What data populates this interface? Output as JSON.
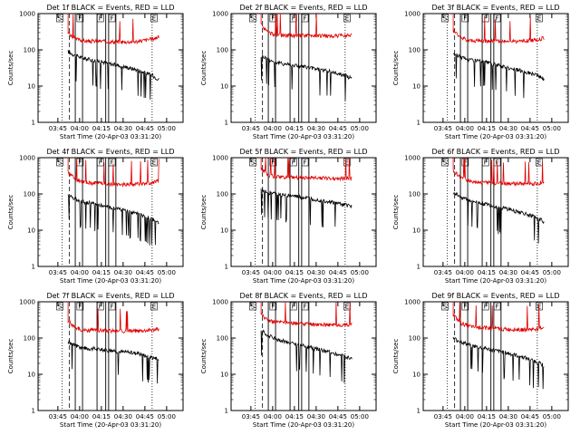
{
  "colors": {
    "events": "#000000",
    "lld": "#e00000",
    "background": "#ffffff"
  },
  "chart_data": [
    {
      "type": "line",
      "panel": "Det 1f",
      "title": "Det 1f BLACK = Events, RED = LLD",
      "xlabel": "Start Time (20-Apr-03 03:31:20)",
      "ylabel": "Counts/sec",
      "yscale": "log",
      "ylim": [
        1,
        1000
      ],
      "xlim": [
        "03:31:20",
        "05:11:20"
      ],
      "xtick_labels": [
        "03:45",
        "04:00",
        "04:15",
        "04:30",
        "04:45",
        "05:00"
      ],
      "ytick_labels": [
        "1",
        "10",
        "100",
        "1000"
      ],
      "flag_labels": [
        "S",
        "F",
        "F",
        "F",
        "E"
      ],
      "series": [
        {
          "name": "Events",
          "color": "#000000",
          "x": [
            "03:52",
            "03:57",
            "04:02",
            "04:06",
            "04:12",
            "04:20",
            "04:30",
            "04:40",
            "04:50",
            "04:55"
          ],
          "values": [
            90,
            70,
            60,
            55,
            50,
            42,
            35,
            28,
            20,
            15
          ]
        },
        {
          "name": "LLD",
          "color": "#e00000",
          "x": [
            "03:52",
            "03:57",
            "04:02",
            "04:06",
            "04:12",
            "04:20",
            "04:30",
            "04:40",
            "04:50",
            "04:55"
          ],
          "values": [
            300,
            200,
            180,
            170,
            175,
            170,
            165,
            170,
            200,
            230
          ]
        }
      ]
    },
    {
      "type": "line",
      "panel": "Det 2f",
      "title": "Det 2f BLACK = Events, RED = LLD",
      "xlabel": "Start Time (20-Apr-03 03:31:20)",
      "ylabel": "Counts/sec",
      "yscale": "log",
      "ylim": [
        1,
        1000
      ],
      "xlim": [
        "03:31:20",
        "05:11:20"
      ],
      "xtick_labels": [
        "03:45",
        "04:00",
        "04:15",
        "04:30",
        "04:45",
        "05:00"
      ],
      "ytick_labels": [
        "1",
        "10",
        "100",
        "1000"
      ],
      "flag_labels": [
        "S",
        "F",
        "F",
        "F",
        "E"
      ],
      "series": [
        {
          "name": "Events",
          "color": "#000000",
          "x": [
            "03:52",
            "03:57",
            "04:02",
            "04:06",
            "04:12",
            "04:20",
            "04:30",
            "04:40",
            "04:50",
            "04:55"
          ],
          "values": [
            70,
            55,
            45,
            42,
            40,
            35,
            30,
            25,
            20,
            16
          ]
        },
        {
          "name": "LLD",
          "color": "#e00000",
          "x": [
            "03:52",
            "03:57",
            "04:02",
            "04:06",
            "04:12",
            "04:20",
            "04:30",
            "04:40",
            "04:50",
            "04:55"
          ],
          "values": [
            500,
            300,
            260,
            250,
            250,
            250,
            250,
            240,
            250,
            270
          ]
        }
      ]
    },
    {
      "type": "line",
      "panel": "Det 3f",
      "title": "Det 3f BLACK = Events, RED = LLD",
      "xlabel": "Start Time (20-Apr-03 03:31:20)",
      "ylabel": "Counts/sec",
      "yscale": "log",
      "ylim": [
        1,
        1000
      ],
      "xlim": [
        "03:31:20",
        "05:11:20"
      ],
      "xtick_labels": [
        "03:45",
        "04:00",
        "04:15",
        "04:30",
        "04:45",
        "05:00"
      ],
      "ytick_labels": [
        "1",
        "10",
        "100",
        "1000"
      ],
      "flag_labels": [
        "S",
        "F",
        "F",
        "F",
        "E"
      ],
      "series": [
        {
          "name": "Events",
          "color": "#000000",
          "x": [
            "03:52",
            "03:57",
            "04:02",
            "04:06",
            "04:12",
            "04:20",
            "04:30",
            "04:40",
            "04:50",
            "04:55"
          ],
          "values": [
            80,
            65,
            55,
            52,
            48,
            40,
            32,
            26,
            20,
            15
          ]
        },
        {
          "name": "LLD",
          "color": "#e00000",
          "x": [
            "03:52",
            "03:57",
            "04:02",
            "04:06",
            "04:12",
            "04:20",
            "04:30",
            "04:40",
            "04:50",
            "04:55"
          ],
          "values": [
            350,
            220,
            190,
            180,
            180,
            175,
            170,
            175,
            190,
            220
          ]
        }
      ]
    },
    {
      "type": "line",
      "panel": "Det 4f",
      "title": "Det 4f BLACK = Events, RED = LLD",
      "xlabel": "Start Time (20-Apr-03 03:31:20)",
      "ylabel": "Counts/sec",
      "yscale": "log",
      "ylim": [
        1,
        1000
      ],
      "xlim": [
        "03:31:20",
        "05:11:20"
      ],
      "xtick_labels": [
        "03:45",
        "04:00",
        "04:15",
        "04:30",
        "04:45",
        "05:00"
      ],
      "ytick_labels": [
        "1",
        "10",
        "100",
        "1000"
      ],
      "flag_labels": [
        "S",
        "F",
        "F",
        "F",
        "E"
      ],
      "series": [
        {
          "name": "Events",
          "color": "#000000",
          "x": [
            "03:52",
            "03:57",
            "04:02",
            "04:06",
            "04:12",
            "04:20",
            "04:30",
            "04:40",
            "04:50",
            "04:55"
          ],
          "values": [
            95,
            75,
            62,
            57,
            52,
            44,
            36,
            28,
            20,
            15
          ]
        },
        {
          "name": "LLD",
          "color": "#e00000",
          "x": [
            "03:52",
            "03:57",
            "04:02",
            "04:06",
            "04:12",
            "04:20",
            "04:30",
            "04:40",
            "04:50",
            "04:55"
          ],
          "values": [
            400,
            250,
            220,
            200,
            200,
            190,
            185,
            190,
            200,
            240
          ]
        }
      ]
    },
    {
      "type": "line",
      "panel": "Det 5f",
      "title": "Det 5f BLACK = Events, RED = LLD",
      "xlabel": "Start Time (20-Apr-03 03:31:20)",
      "ylabel": "Counts/sec",
      "yscale": "log",
      "ylim": [
        1,
        1000
      ],
      "xlim": [
        "03:31:20",
        "05:11:20"
      ],
      "xtick_labels": [
        "03:45",
        "04:00",
        "04:15",
        "04:30",
        "04:45",
        "05:00"
      ],
      "ytick_labels": [
        "1",
        "10",
        "100",
        "1000"
      ],
      "flag_labels": [
        "S",
        "F",
        "F",
        "F",
        "E"
      ],
      "series": [
        {
          "name": "Events",
          "color": "#000000",
          "x": [
            "03:52",
            "03:57",
            "04:02",
            "04:06",
            "04:12",
            "04:20",
            "04:30",
            "04:40",
            "04:50",
            "04:55"
          ],
          "values": [
            130,
            110,
            100,
            95,
            90,
            80,
            70,
            60,
            50,
            45
          ]
        },
        {
          "name": "LLD",
          "color": "#e00000",
          "x": [
            "03:52",
            "03:57",
            "04:02",
            "04:06",
            "04:12",
            "04:20",
            "04:30",
            "04:40",
            "04:50",
            "04:55"
          ],
          "values": [
            500,
            330,
            300,
            290,
            290,
            280,
            280,
            270,
            270,
            280
          ]
        }
      ]
    },
    {
      "type": "line",
      "panel": "Det 6f",
      "title": "Det 6f BLACK = Events, RED = LLD",
      "xlabel": "Start Time (20-Apr-03 03:31:20)",
      "ylabel": "Counts/sec",
      "yscale": "log",
      "ylim": [
        1,
        1000
      ],
      "xlim": [
        "03:31:20",
        "05:11:20"
      ],
      "xtick_labels": [
        "03:45",
        "04:00",
        "04:15",
        "04:30",
        "04:45",
        "05:00"
      ],
      "ytick_labels": [
        "1",
        "10",
        "100",
        "1000"
      ],
      "flag_labels": [
        "S",
        "F",
        "F",
        "F",
        "E"
      ],
      "series": [
        {
          "name": "Events",
          "color": "#000000",
          "x": [
            "03:52",
            "03:57",
            "04:02",
            "04:06",
            "04:12",
            "04:20",
            "04:30",
            "04:40",
            "04:50",
            "04:55"
          ],
          "values": [
            110,
            85,
            70,
            62,
            55,
            46,
            38,
            30,
            22,
            17
          ]
        },
        {
          "name": "LLD",
          "color": "#e00000",
          "x": [
            "03:52",
            "03:57",
            "04:02",
            "04:06",
            "04:12",
            "04:20",
            "04:30",
            "04:40",
            "04:50",
            "04:55"
          ],
          "values": [
            450,
            280,
            240,
            220,
            210,
            200,
            195,
            190,
            195,
            220
          ]
        }
      ]
    },
    {
      "type": "line",
      "panel": "Det 7f",
      "title": "Det 7f BLACK = Events, RED = LLD",
      "xlabel": "Start Time (20-Apr-03 03:31:20)",
      "ylabel": "Counts/sec",
      "yscale": "log",
      "ylim": [
        1,
        1000
      ],
      "xlim": [
        "03:31:20",
        "05:11:20"
      ],
      "xtick_labels": [
        "03:45",
        "04:00",
        "04:15",
        "04:30",
        "04:45",
        "05:00"
      ],
      "ytick_labels": [
        "1",
        "10",
        "100",
        "1000"
      ],
      "flag_labels": [
        "S",
        "F",
        "F",
        "F",
        "E"
      ],
      "series": [
        {
          "name": "Events",
          "color": "#000000",
          "x": [
            "03:52",
            "03:57",
            "04:02",
            "04:06",
            "04:12",
            "04:20",
            "04:30",
            "04:40",
            "04:50",
            "04:55"
          ],
          "values": [
            80,
            62,
            55,
            52,
            50,
            46,
            42,
            38,
            30,
            25
          ]
        },
        {
          "name": "LLD",
          "color": "#e00000",
          "x": [
            "03:52",
            "03:57",
            "04:02",
            "04:06",
            "04:12",
            "04:20",
            "04:30",
            "04:40",
            "04:50",
            "04:55"
          ],
          "values": [
            300,
            190,
            170,
            165,
            165,
            160,
            155,
            160,
            170,
            180
          ]
        }
      ]
    },
    {
      "type": "line",
      "panel": "Det 8f",
      "title": "Det 8f BLACK = Events, RED = LLD",
      "xlabel": "Start Time (20-Apr-03 03:31:20)",
      "ylabel": "Counts/sec",
      "yscale": "log",
      "ylim": [
        1,
        1000
      ],
      "xlim": [
        "03:31:20",
        "05:11:20"
      ],
      "xtick_labels": [
        "03:45",
        "04:00",
        "04:15",
        "04:30",
        "04:45",
        "05:00"
      ],
      "ytick_labels": [
        "1",
        "10",
        "100",
        "1000"
      ],
      "flag_labels": [
        "S",
        "F",
        "F",
        "F",
        "E"
      ],
      "series": [
        {
          "name": "Events",
          "color": "#000000",
          "x": [
            "03:52",
            "03:57",
            "04:02",
            "04:06",
            "04:12",
            "04:20",
            "04:30",
            "04:40",
            "04:50",
            "04:55"
          ],
          "values": [
            160,
            120,
            95,
            85,
            75,
            62,
            50,
            40,
            32,
            27
          ]
        },
        {
          "name": "LLD",
          "color": "#e00000",
          "x": [
            "03:52",
            "03:57",
            "04:02",
            "04:06",
            "04:12",
            "04:20",
            "04:30",
            "04:40",
            "04:50",
            "04:55"
          ],
          "values": [
            450,
            300,
            280,
            270,
            260,
            250,
            240,
            230,
            230,
            240
          ]
        }
      ]
    },
    {
      "type": "line",
      "panel": "Det 9f",
      "title": "Det 9f BLACK = Events, RED = LLD",
      "xlabel": "Start Time (20-Apr-03 03:31:20)",
      "ylabel": "Counts/sec",
      "yscale": "log",
      "ylim": [
        1,
        1000
      ],
      "xlim": [
        "03:31:20",
        "05:11:20"
      ],
      "xtick_labels": [
        "03:45",
        "04:00",
        "04:15",
        "04:30",
        "04:45",
        "05:00"
      ],
      "ytick_labels": [
        "1",
        "10",
        "100",
        "1000"
      ],
      "flag_labels": [
        "S",
        "F",
        "F",
        "F",
        "E"
      ],
      "series": [
        {
          "name": "Events",
          "color": "#000000",
          "x": [
            "03:52",
            "03:57",
            "04:02",
            "04:06",
            "04:12",
            "04:20",
            "04:30",
            "04:40",
            "04:50",
            "04:55"
          ],
          "values": [
            100,
            80,
            68,
            60,
            54,
            46,
            38,
            30,
            22,
            17
          ]
        },
        {
          "name": "LLD",
          "color": "#e00000",
          "x": [
            "03:52",
            "03:57",
            "04:02",
            "04:06",
            "04:12",
            "04:20",
            "04:30",
            "04:40",
            "04:50",
            "04:55"
          ],
          "values": [
            450,
            260,
            220,
            200,
            195,
            185,
            175,
            170,
            180,
            200
          ]
        }
      ]
    }
  ]
}
